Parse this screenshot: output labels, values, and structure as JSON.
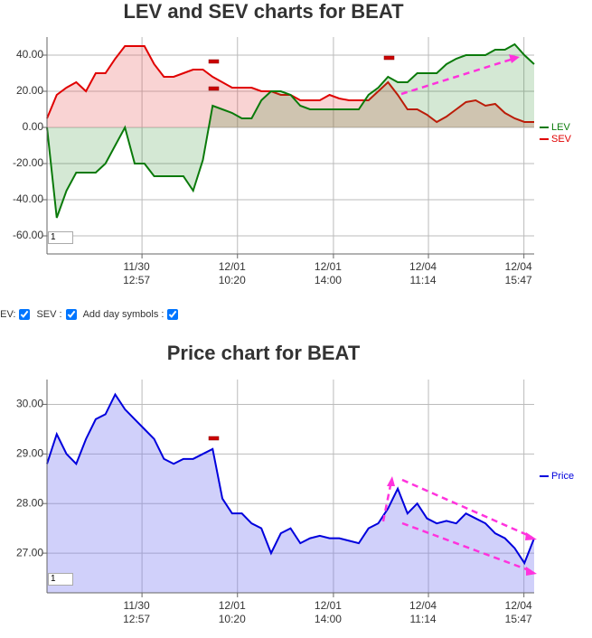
{
  "chart_data": [
    {
      "type": "line",
      "title": "LEV and SEV charts for BEAT",
      "area": true,
      "grid": true,
      "legend_position": "right",
      "x": [
        0,
        2,
        4,
        6,
        8,
        10,
        12,
        14,
        16,
        18,
        20,
        22,
        24,
        26,
        28,
        30,
        32,
        34,
        36,
        38,
        40,
        42,
        44,
        46,
        48,
        50,
        52,
        54,
        56,
        58,
        60,
        62,
        64,
        66,
        68,
        70,
        72,
        74,
        76,
        78,
        80,
        82,
        84,
        86,
        88,
        90,
        92,
        94,
        96,
        98,
        100
      ],
      "series": [
        {
          "name": "SEV",
          "color": "#e00000",
          "fill": "rgba(230,80,80,0.25)",
          "values": [
            5,
            18,
            22,
            25,
            20,
            30,
            30,
            38,
            45,
            45,
            45,
            35,
            28,
            28,
            30,
            32,
            32,
            28,
            25,
            22,
            22,
            22,
            20,
            20,
            18,
            18,
            15,
            15,
            15,
            18,
            16,
            15,
            15,
            15,
            20,
            25,
            18,
            10,
            10,
            7,
            3,
            6,
            10,
            14,
            15,
            12,
            13,
            8,
            5,
            3,
            3
          ]
        },
        {
          "name": "LEV",
          "color": "#0a7a0a",
          "fill": "rgba(40,140,40,0.2)",
          "values": [
            0,
            -50,
            -35,
            -25,
            -25,
            -25,
            -20,
            -10,
            0,
            -20,
            -20,
            -27,
            -27,
            -27,
            -27,
            -35,
            -18,
            12,
            10,
            8,
            5,
            5,
            15,
            20,
            20,
            18,
            12,
            10,
            10,
            10,
            10,
            10,
            10,
            18,
            22,
            28,
            25,
            25,
            30,
            30,
            30,
            35,
            38,
            40,
            40,
            40,
            43,
            43,
            46,
            40,
            35
          ]
        }
      ],
      "legend_order": [
        "LEV",
        "SEV"
      ],
      "xlim": [
        0,
        100
      ],
      "xticks": [
        {
          "value": 19.5,
          "label": [
            "11/30",
            "12:57"
          ]
        },
        {
          "value": 39.1,
          "label": [
            "12/01",
            "10:20"
          ]
        },
        {
          "value": 58.8,
          "label": [
            "12/01",
            "14:00"
          ]
        },
        {
          "value": 78.3,
          "label": [
            "12/04",
            "11:14"
          ]
        },
        {
          "value": 97.9,
          "label": [
            "12/04",
            "15:47"
          ]
        }
      ],
      "ylim": [
        -70,
        50
      ],
      "yticks": [
        {
          "value": 40,
          "label": "40.00"
        },
        {
          "value": 20,
          "label": "20.00"
        },
        {
          "value": 0,
          "label": "0.00"
        },
        {
          "value": -20,
          "label": "-20.00"
        },
        {
          "value": -40,
          "label": "-40.00"
        },
        {
          "value": -60,
          "label": "-60.00"
        }
      ]
    },
    {
      "type": "line",
      "title": "Price chart for BEAT",
      "area": true,
      "grid": true,
      "legend_position": "right",
      "x": [
        0,
        2,
        4,
        6,
        8,
        10,
        12,
        14,
        16,
        18,
        20,
        22,
        24,
        26,
        28,
        30,
        32,
        34,
        36,
        38,
        40,
        42,
        44,
        46,
        48,
        50,
        52,
        54,
        56,
        58,
        60,
        62,
        64,
        66,
        68,
        70,
        72,
        74,
        76,
        78,
        80,
        82,
        84,
        86,
        88,
        90,
        92,
        94,
        96,
        98,
        100
      ],
      "series": [
        {
          "name": "Price",
          "color": "#0000dd",
          "fill": "rgba(120,120,240,0.35)",
          "values": [
            28.8,
            29.4,
            29.0,
            28.8,
            29.3,
            29.7,
            29.8,
            30.2,
            29.9,
            29.7,
            29.5,
            29.3,
            28.9,
            28.8,
            28.9,
            28.9,
            29.0,
            29.1,
            28.1,
            27.8,
            27.8,
            27.6,
            27.5,
            27.0,
            27.4,
            27.5,
            27.2,
            27.3,
            27.35,
            27.3,
            27.3,
            27.25,
            27.2,
            27.5,
            27.6,
            27.9,
            28.3,
            27.8,
            28.0,
            27.7,
            27.6,
            27.65,
            27.6,
            27.8,
            27.7,
            27.6,
            27.4,
            27.3,
            27.1,
            26.8,
            27.3
          ]
        }
      ],
      "legend_order": [
        "Price"
      ],
      "xlim": [
        0,
        100
      ],
      "xticks": [
        {
          "value": 19.5,
          "label": [
            "11/30",
            "12:57"
          ]
        },
        {
          "value": 39.1,
          "label": [
            "12/01",
            "10:20"
          ]
        },
        {
          "value": 58.8,
          "label": [
            "12/01",
            "14:00"
          ]
        },
        {
          "value": 78.3,
          "label": [
            "12/04",
            "11:14"
          ]
        },
        {
          "value": 97.9,
          "label": [
            "12/04",
            "15:47"
          ]
        }
      ],
      "ylim": [
        26.2,
        30.5
      ],
      "yticks": [
        {
          "value": 30,
          "label": "30.00"
        },
        {
          "value": 29,
          "label": "29.00"
        },
        {
          "value": 28,
          "label": "28.00"
        },
        {
          "value": 27,
          "label": "27.00"
        }
      ]
    }
  ],
  "controls": {
    "items": [
      "LEV:",
      "SEV :",
      "Add day symbols :"
    ],
    "zoom_inputs": [
      "1",
      "1"
    ]
  }
}
